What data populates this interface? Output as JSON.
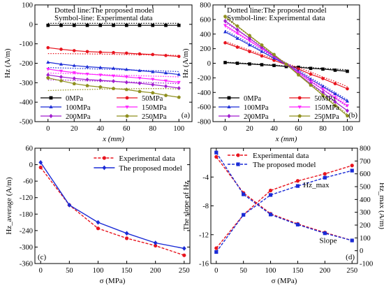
{
  "chart_data": [
    {
      "id": "a",
      "type": "line",
      "panel_label": "(a)",
      "xlabel": "x (mm)",
      "ylabel": "Hz (A/m)",
      "xlim": [
        -10,
        110
      ],
      "ylim": [
        -500,
        100
      ],
      "xticks": [
        0,
        20,
        40,
        60,
        80,
        100
      ],
      "yticks": [
        100,
        0,
        -100,
        -200,
        -300,
        -400,
        -500
      ],
      "annotations": [
        "Dotted line:The proposed model",
        "Symbol-line: Experimental data"
      ],
      "legend_position": "bottom",
      "x": [
        0,
        10,
        20,
        30,
        40,
        50,
        60,
        70,
        80,
        90,
        100
      ],
      "series": [
        {
          "name": "0MPa",
          "color": "#000000",
          "marker": "square",
          "experimental": [
            -5,
            -5,
            -5,
            -5,
            -5,
            -5,
            -5,
            -5,
            -5,
            -5,
            -5
          ],
          "model": [
            5,
            5,
            5,
            5,
            5,
            5,
            5,
            5,
            5,
            5,
            5
          ]
        },
        {
          "name": "50MPa",
          "color": "#e8141e",
          "marker": "circle",
          "experimental": [
            -120,
            -128,
            -135,
            -140,
            -143,
            -145,
            -148,
            -152,
            -155,
            -160,
            -165
          ],
          "model": [
            -150,
            -150,
            -151,
            -152,
            -153,
            -154,
            -155,
            -156,
            -157,
            -158,
            -160
          ]
        },
        {
          "name": "100MPa",
          "color": "#1a2bd6",
          "marker": "triangle-up",
          "experimental": [
            -195,
            -205,
            -212,
            -218,
            -222,
            -226,
            -232,
            -238,
            -244,
            -250,
            -258
          ],
          "model": [
            -222,
            -224,
            -226,
            -228,
            -230,
            -232,
            -234,
            -236,
            -238,
            -240,
            -243
          ]
        },
        {
          "name": "150MPa",
          "color": "#ff22ff",
          "marker": "triangle-down",
          "experimental": [
            -230,
            -240,
            -248,
            -255,
            -260,
            -265,
            -270,
            -276,
            -282,
            -290,
            -298
          ],
          "model": [
            -250,
            -252,
            -254,
            -256,
            -258,
            -260,
            -262,
            -264,
            -266,
            -268,
            -270
          ]
        },
        {
          "name": "200MPa",
          "color": "#a01ccf",
          "marker": "diamond",
          "experimental": [
            -260,
            -270,
            -278,
            -284,
            -288,
            -292,
            -298,
            -303,
            -310,
            -318,
            -328
          ],
          "model": [
            -285,
            -286,
            -288,
            -290,
            -292,
            -294,
            -296,
            -298,
            -300,
            -302,
            -305
          ]
        },
        {
          "name": "250MPa",
          "color": "#8f8f1e",
          "marker": "pentagon",
          "experimental": [
            -275,
            -290,
            -305,
            -315,
            -322,
            -330,
            -335,
            -345,
            -352,
            -365,
            -375
          ],
          "model": [
            -340,
            -338,
            -336,
            -335,
            -333,
            -332,
            -331,
            -330,
            -330,
            -330,
            -332
          ]
        }
      ]
    },
    {
      "id": "b",
      "type": "line",
      "panel_label": "(b)",
      "xlabel": "x (mm)",
      "ylabel": "Hz (A/m)",
      "xlim": [
        -10,
        110
      ],
      "ylim": [
        -800,
        800
      ],
      "xticks": [
        0,
        20,
        40,
        60,
        80,
        100
      ],
      "yticks": [
        800,
        600,
        400,
        200,
        0,
        -200,
        -400,
        -600,
        -800
      ],
      "annotations": [
        "Dotted line:The proposed model",
        "Symbol-line: Experimental data"
      ],
      "legend_position": "bottom",
      "x": [
        0,
        10,
        20,
        30,
        40,
        50,
        60,
        70,
        80,
        90,
        100
      ],
      "series": [
        {
          "name": "0MPa",
          "color": "#000000",
          "marker": "square",
          "experimental": [
            10,
            0,
            -10,
            -20,
            -30,
            -45,
            -55,
            -70,
            -80,
            -95,
            -110
          ],
          "model": [
            15,
            5,
            -5,
            -15,
            -25,
            -40,
            -50,
            -60,
            -70,
            -80,
            -90
          ]
        },
        {
          "name": "50MPa",
          "color": "#e8141e",
          "marker": "circle",
          "experimental": [
            280,
            220,
            160,
            100,
            40,
            -20,
            -80,
            -150,
            -210,
            -280,
            -350
          ],
          "model": [
            300,
            240,
            180,
            120,
            60,
            0,
            -60,
            -120,
            -190,
            -250,
            -320
          ]
        },
        {
          "name": "100MPa",
          "color": "#1a2bd6",
          "marker": "triangle-up",
          "experimental": [
            430,
            340,
            250,
            160,
            70,
            -20,
            -110,
            -220,
            -320,
            -420,
            -520
          ],
          "model": [
            450,
            360,
            270,
            180,
            90,
            0,
            -90,
            -200,
            -300,
            -400,
            -500
          ]
        },
        {
          "name": "150MPa",
          "color": "#ff22ff",
          "marker": "triangle-down",
          "experimental": [
            520,
            415,
            310,
            200,
            90,
            -20,
            -130,
            -250,
            -360,
            -470,
            -580
          ],
          "model": [
            500,
            400,
            300,
            200,
            100,
            0,
            -110,
            -220,
            -330,
            -440,
            -550
          ]
        },
        {
          "name": "200MPa",
          "color": "#a01ccf",
          "marker": "diamond",
          "experimental": [
            580,
            460,
            340,
            220,
            100,
            -20,
            -150,
            -280,
            -400,
            -530,
            -650
          ],
          "model": [
            560,
            450,
            340,
            220,
            110,
            0,
            -120,
            -240,
            -360,
            -480,
            -600
          ]
        },
        {
          "name": "250MPa",
          "color": "#8f8f1e",
          "marker": "pentagon",
          "experimental": [
            640,
            510,
            380,
            250,
            120,
            -15,
            -160,
            -300,
            -440,
            -580,
            -720
          ],
          "model": [
            620,
            500,
            370,
            240,
            110,
            -10,
            -150,
            -290,
            -420,
            -560,
            -700
          ]
        }
      ]
    },
    {
      "id": "c",
      "type": "line",
      "panel_label": "(c)",
      "xlabel": "σ (MPa)",
      "ylabel": "Hz_average (A/m)",
      "xlim": [
        -10,
        260
      ],
      "ylim": [
        -360,
        60
      ],
      "xticks": [
        0,
        50,
        100,
        150,
        200,
        250
      ],
      "yticks": [
        60,
        0,
        -60,
        -120,
        -180,
        -240,
        -300,
        -360
      ],
      "legend_position": "top-right",
      "x": [
        0,
        50,
        100,
        150,
        200,
        250
      ],
      "series": [
        {
          "name": "Experimental data",
          "color": "#e8141e",
          "marker": "circle",
          "dashed": true,
          "values": [
            -10,
            -147,
            -232,
            -268,
            -295,
            -330
          ]
        },
        {
          "name": "The proposed model",
          "color": "#1a2bd6",
          "marker": "diamond",
          "dashed": false,
          "values": [
            8,
            -147,
            -210,
            -250,
            -285,
            -305
          ]
        }
      ]
    },
    {
      "id": "d",
      "type": "line",
      "panel_label": "(d)",
      "xlabel": "σ (MPa)",
      "ylabel": "The slope of Hz",
      "y2label": "Hz_max (A/m)",
      "xlim": [
        -10,
        260
      ],
      "ylim": [
        -16,
        0
      ],
      "y2lim": [
        -100,
        800
      ],
      "xticks": [
        0,
        50,
        100,
        150,
        200,
        250
      ],
      "yticks": [
        -4,
        -8,
        -12,
        -16
      ],
      "y2ticks": [
        800,
        700,
        600,
        500,
        400,
        300,
        200,
        100,
        0,
        -100
      ],
      "legend_position": "top-left",
      "annotations": [
        "Hz_max",
        "Slope"
      ],
      "x": [
        0,
        50,
        100,
        150,
        200,
        250
      ],
      "series": [
        {
          "name": "Experimental data",
          "axis": "left",
          "group": "slope",
          "color": "#e8141e",
          "marker": "circle",
          "dashed": true,
          "values": [
            -1.2,
            -6.2,
            -9.1,
            -10.5,
            -11.7,
            -12.8
          ]
        },
        {
          "name": "The proposed model",
          "axis": "left",
          "group": "slope",
          "color": "#1a2bd6",
          "marker": "square",
          "dashed": true,
          "values": [
            -0.6,
            -6.4,
            -9.2,
            -10.6,
            -11.8,
            -12.8
          ]
        },
        {
          "name": "Experimental data",
          "axis": "right",
          "group": "Hz_max",
          "color": "#e8141e",
          "marker": "circle",
          "dashed": true,
          "values": [
            20,
            280,
            470,
            545,
            600,
            665
          ]
        },
        {
          "name": "The proposed model",
          "axis": "right",
          "group": "Hz_max",
          "color": "#1a2bd6",
          "marker": "square",
          "dashed": true,
          "values": [
            -10,
            280,
            435,
            505,
            570,
            625
          ]
        }
      ]
    }
  ]
}
